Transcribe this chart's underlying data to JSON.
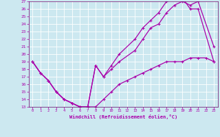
{
  "xlabel": "Windchill (Refroidissement éolien,°C)",
  "bg_color": "#cce8f0",
  "grid_color": "#ffffff",
  "line_color": "#aa00aa",
  "xlim": [
    -0.5,
    23.5
  ],
  "ylim": [
    13,
    27
  ],
  "xticks": [
    0,
    1,
    2,
    3,
    4,
    5,
    6,
    7,
    8,
    9,
    10,
    11,
    12,
    13,
    14,
    15,
    16,
    17,
    18,
    19,
    20,
    21,
    22,
    23
  ],
  "yticks": [
    13,
    14,
    15,
    16,
    17,
    18,
    19,
    20,
    21,
    22,
    23,
    24,
    25,
    26,
    27
  ],
  "series1_x": [
    0,
    1,
    2,
    3,
    4,
    5,
    6,
    7,
    8,
    9,
    10,
    11,
    12,
    13,
    14,
    15,
    16,
    17,
    18,
    19,
    20,
    21,
    22,
    23
  ],
  "series1_y": [
    19,
    17.5,
    16.5,
    15,
    14,
    13.5,
    13,
    13,
    13,
    14,
    15,
    16,
    16.5,
    17,
    17.5,
    18,
    18.5,
    19,
    19,
    19,
    19.5,
    19.5,
    19.5,
    19
  ],
  "series2_x": [
    0,
    1,
    2,
    3,
    4,
    5,
    6,
    7,
    8,
    9,
    10,
    11,
    13,
    14,
    15,
    16,
    17,
    18,
    19,
    20,
    21,
    23
  ],
  "series2_y": [
    19,
    17.5,
    16.5,
    15,
    14,
    13.5,
    13,
    13,
    18.5,
    17,
    18,
    19,
    20.5,
    22,
    23.5,
    24,
    25.5,
    26.5,
    27,
    26.5,
    27,
    21
  ],
  "series3_x": [
    0,
    1,
    2,
    3,
    4,
    5,
    6,
    7,
    8,
    9,
    10,
    11,
    13,
    14,
    15,
    16,
    17,
    18,
    19,
    20,
    21,
    23
  ],
  "series3_y": [
    19,
    17.5,
    16.5,
    15,
    14,
    13.5,
    13,
    13,
    18.5,
    17,
    18.5,
    20,
    22,
    23.5,
    24.5,
    25.5,
    27,
    27.5,
    27.5,
    26,
    26,
    19
  ],
  "markersize": 3,
  "linewidth": 0.9
}
